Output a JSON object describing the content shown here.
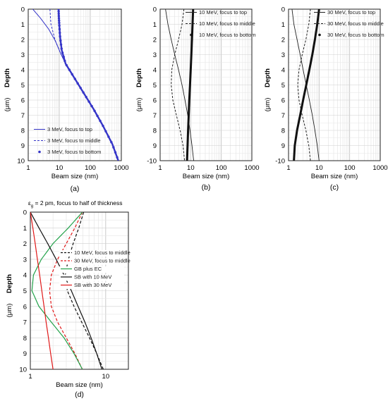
{
  "chart_data": [
    {
      "id": "a",
      "type": "line",
      "caption": "(a)",
      "xlabel": "Beam size (nm)",
      "ylabel": "Depth",
      "xscale": "log",
      "xlim": [
        1,
        1000
      ],
      "xticks": [
        "1",
        "10",
        "100",
        "1000"
      ],
      "ylim": [
        0,
        10
      ],
      "yticks": [
        "0",
        "1",
        "2",
        "3",
        "4",
        "5",
        "6",
        "7",
        "8",
        "9",
        "10"
      ],
      "grid": true,
      "legend": "bottom-left",
      "series": [
        {
          "name": "3 MeV, focus to top",
          "style": "solid",
          "color": "#3535c8",
          "x": [
            1.4,
            2.5,
            4.5,
            7.5,
            11,
            16,
            32,
            64,
            128,
            256,
            512,
            800
          ],
          "y": [
            0,
            0.6,
            1.3,
            2.1,
            2.9,
            3.6,
            4.6,
            5.6,
            6.6,
            7.7,
            8.9,
            10
          ]
        },
        {
          "name": "3 MeV, focus to middle",
          "style": "dashed",
          "color": "#3535c8",
          "x": [
            5,
            5.4,
            7.5,
            11,
            16,
            32,
            64,
            128,
            256,
            512,
            800
          ],
          "y": [
            0,
            1,
            2.1,
            2.9,
            3.6,
            4.6,
            5.6,
            6.6,
            7.7,
            8.9,
            10
          ]
        },
        {
          "name": "3 MeV, focus to bottom",
          "style": "markers",
          "color": "#3535c8",
          "x": [
            9.5,
            9.7,
            10,
            10.6,
            12,
            16,
            32,
            64,
            128,
            256,
            512,
            800
          ],
          "y": [
            0,
            0.5,
            1,
            1.8,
            2.7,
            3.6,
            4.6,
            5.6,
            6.6,
            7.7,
            8.9,
            10
          ]
        }
      ]
    },
    {
      "id": "b",
      "type": "line",
      "caption": "(b)",
      "xlabel": "Beam size (nm)",
      "ylabel": "Depth",
      "xscale": "log",
      "xlim": [
        1,
        1000
      ],
      "xticks": [
        "1",
        "10",
        "100",
        "1000"
      ],
      "ylim": [
        0,
        10
      ],
      "yticks": [
        "0",
        "1",
        "2",
        "3",
        "4",
        "5",
        "6",
        "7",
        "8",
        "9",
        "-10"
      ],
      "grid": true,
      "legend": "top-right",
      "series": [
        {
          "name": "10 MeV, focus to top",
          "style": "solid-thin",
          "color": "#222222",
          "x": [
            1.5,
            1.8,
            2.3,
            3,
            4,
            5.2,
            6.5,
            8,
            9.5,
            11,
            12.5
          ],
          "y": [
            0,
            1,
            2,
            3,
            4,
            5,
            6,
            7,
            8,
            9,
            10
          ]
        },
        {
          "name": "10 MeV, focus to middle",
          "style": "dashed",
          "color": "#222222",
          "x": [
            6,
            5.2,
            4,
            3,
            2.4,
            2.3,
            2.6,
            3.4,
            4.5,
            5.6,
            6.3
          ],
          "y": [
            0,
            1,
            2,
            3,
            4,
            5,
            6,
            7,
            8,
            9,
            10
          ]
        },
        {
          "name": "10 MeV, focus to bottom",
          "style": "markers",
          "color": "#111111",
          "x": [
            12,
            11.5,
            11,
            10.5,
            10,
            9.5,
            9,
            8.6,
            8.2,
            7.9,
            7.6
          ],
          "y": [
            0,
            1,
            2,
            3,
            4,
            5,
            6,
            7,
            8,
            9,
            10
          ]
        }
      ]
    },
    {
      "id": "c",
      "type": "line",
      "caption": "(c)",
      "xlabel": "Beam size (nm)",
      "ylabel": "Depth",
      "xscale": "log",
      "xlim": [
        1,
        1000
      ],
      "xticks": [
        "1",
        "10",
        "100",
        "1000"
      ],
      "ylim": [
        0,
        10
      ],
      "yticks": [
        "0",
        "1",
        "2",
        "3",
        "4",
        "5",
        "6",
        "7",
        "8",
        "9",
        "-10"
      ],
      "grid": true,
      "legend": "top-right",
      "series": [
        {
          "name": "30 MeV, focus to top",
          "style": "solid-thin",
          "color": "#222222",
          "x": [
            1.3,
            1.5,
            1.9,
            2.4,
            3,
            3.8,
            4.8,
            6,
            7.3,
            8.7,
            10
          ],
          "y": [
            0,
            1,
            2,
            3,
            4,
            5,
            6,
            7,
            8,
            9,
            10
          ]
        },
        {
          "name": "30 MeV, focus to middle",
          "style": "dashed",
          "color": "#222222",
          "x": [
            5.2,
            4.6,
            3.7,
            2.8,
            2.2,
            2,
            2.2,
            2.8,
            3.7,
            4.6,
            5.2
          ],
          "y": [
            0,
            1,
            2,
            3,
            4,
            5,
            6,
            7,
            8,
            9,
            10
          ]
        },
        {
          "name": "30 MeV, focus to bottom",
          "style": "markers",
          "color": "#111111",
          "x": [
            10,
            8.7,
            7.3,
            6,
            4.8,
            3.8,
            3,
            2.4,
            1.9,
            1.6,
            1.5
          ],
          "y": [
            0,
            1,
            2,
            3,
            4,
            5,
            6,
            7,
            8,
            9,
            10
          ]
        }
      ]
    },
    {
      "id": "d",
      "type": "line",
      "caption": "(d)",
      "note_prefix": "ε",
      "note_sub": "g",
      "note_text": " = 2 pm, focus to half of thickness",
      "xlabel": "Beam size (nm)",
      "ylabel": "Depth",
      "xscale": "log",
      "xlim": [
        1,
        20
      ],
      "xticks": [
        "1",
        "10"
      ],
      "ylim": [
        0,
        10
      ],
      "yticks": [
        "0",
        "1",
        "2",
        "3",
        "4",
        "5",
        "6",
        "7",
        "8",
        "9",
        "10"
      ],
      "grid": true,
      "legend": "center-right",
      "series": [
        {
          "name": "10 MeV, focus to middle",
          "style": "dashed",
          "color": "#111111",
          "x": [
            5.1,
            4.4,
            3.7,
            3.2,
            2.9,
            3.1,
            3.8,
            4.8,
            6.1,
            7.6,
            9.3
          ],
          "y": [
            0,
            1,
            2,
            3,
            4,
            5,
            6,
            7,
            8,
            9,
            10
          ]
        },
        {
          "name": "30 MeV, focus to middle",
          "style": "dashed",
          "color": "#e01818",
          "x": [
            4.9,
            3.9,
            3,
            2.3,
            1.9,
            1.8,
            1.9,
            2.3,
            3,
            3.9,
            4.9
          ],
          "y": [
            0,
            1,
            2,
            3,
            4,
            5,
            6,
            7,
            8,
            9,
            10
          ]
        },
        {
          "name": "GB plus EC",
          "style": "solid",
          "color": "#22a24a",
          "x": [
            4.9,
            3.2,
            2,
            1.4,
            1.1,
            1.05,
            1.3,
            1.9,
            2.8,
            3.8,
            4.9
          ],
          "y": [
            0,
            1,
            2,
            3,
            4,
            5,
            6,
            7,
            8,
            9,
            10
          ]
        },
        {
          "name": "SB with 10 MeV",
          "style": "solid",
          "color": "#111111",
          "x": [
            1,
            1.3,
            1.7,
            2.2,
            2.8,
            3.5,
            4.3,
            5.3,
            6.4,
            7.6,
            8.9
          ],
          "y": [
            0,
            1,
            2,
            3,
            4,
            5,
            6,
            7,
            8,
            9,
            10
          ]
        },
        {
          "name": "SB with 30 MeV",
          "style": "solid",
          "color": "#e01818",
          "x": [
            1,
            1.08,
            1.16,
            1.24,
            1.33,
            1.42,
            1.52,
            1.62,
            1.74,
            1.86,
            2
          ],
          "y": [
            0,
            1,
            2,
            3,
            4,
            5,
            6,
            7,
            8,
            9,
            10
          ]
        }
      ]
    }
  ]
}
